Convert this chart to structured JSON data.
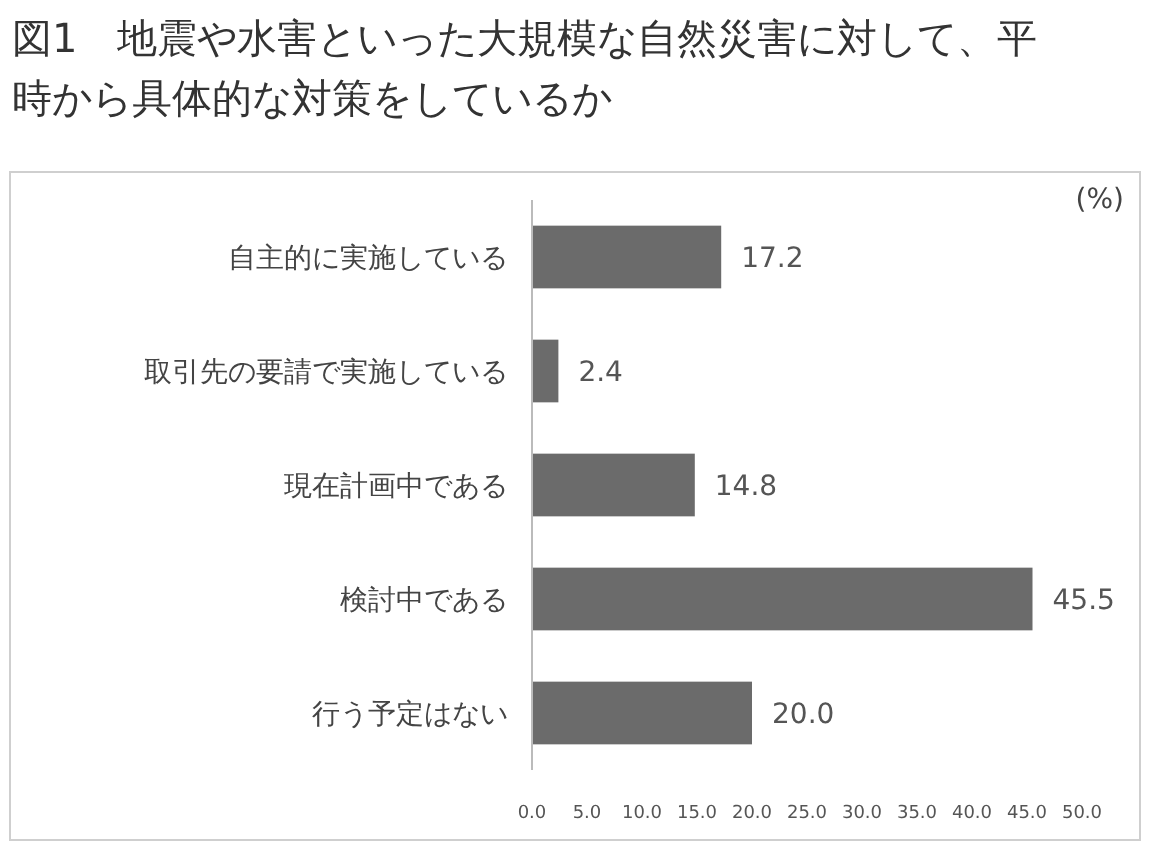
{
  "chart_data": {
    "type": "bar",
    "orientation": "horizontal",
    "title": "図1　地震や水害といった大規模な自然災害に対して、平時から具体的な対策をしているか",
    "annotations": [
      "(%)"
    ],
    "categories": [
      "自主的に実施している",
      "取引先の要請で実施している",
      "現在計画中である",
      "検討中である",
      "行う予定はない"
    ],
    "values": [
      17.2,
      2.4,
      14.8,
      45.5,
      20.0
    ],
    "value_labels": [
      "17.2",
      "2.4",
      "14.8",
      "45.5",
      "20.0"
    ],
    "color": "#6b6b6b",
    "xlim": [
      0,
      50
    ],
    "xticks": [
      {
        "value": 0,
        "label": "0.0"
      },
      {
        "value": 5,
        "label": "5.0"
      },
      {
        "value": 10,
        "label": "10.0"
      },
      {
        "value": 15,
        "label": "15.0"
      },
      {
        "value": 20,
        "label": "20.0"
      },
      {
        "value": 25,
        "label": "25.0"
      },
      {
        "value": 30,
        "label": "30.0"
      },
      {
        "value": 35,
        "label": "35.0"
      },
      {
        "value": 40,
        "label": "40.0"
      },
      {
        "value": 45,
        "label": "45.0"
      },
      {
        "value": 50,
        "label": "50.0"
      }
    ],
    "grid": false
  }
}
